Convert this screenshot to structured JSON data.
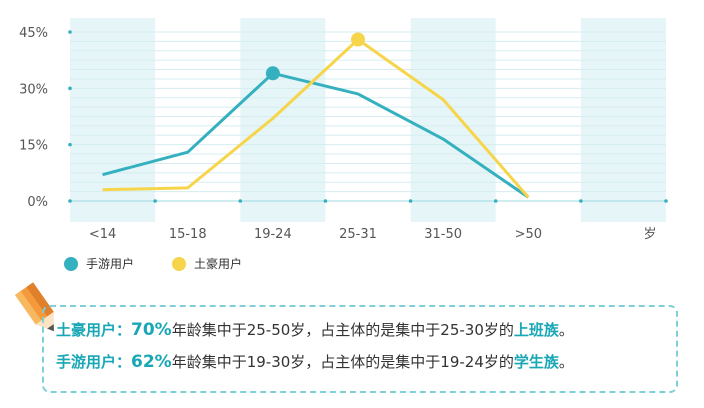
{
  "chart_data": {
    "type": "line",
    "categories": [
      "<14",
      "15-18",
      "19-24",
      "25-31",
      "31-50",
      ">50"
    ],
    "unit_label": "岁",
    "ylim": [
      0,
      45
    ],
    "yticks": [
      "45%",
      "30%",
      "15%",
      "0%"
    ],
    "ytick_values": [
      45,
      30,
      15,
      0
    ],
    "series": [
      {
        "name": "手游用户",
        "color": "#35b0bf",
        "values": [
          7,
          13,
          34,
          28.5,
          16.5,
          1
        ],
        "peak_index": 2
      },
      {
        "name": "土豪用户",
        "color": "#f7d54a",
        "values": [
          3,
          3.5,
          22,
          43,
          27,
          1
        ],
        "peak_index": 3
      }
    ]
  },
  "notes": [
    {
      "who": "土豪用户：",
      "pct": "70%",
      "text": "年龄集中于25-50岁，占主体的是集中于25-30岁的",
      "group": "上班族",
      "end": "。"
    },
    {
      "who": "手游用户：",
      "pct": "62%",
      "text": "年龄集中于19-30岁，占主体的是集中于19-24岁的",
      "group": "学生族",
      "end": "。"
    }
  ]
}
